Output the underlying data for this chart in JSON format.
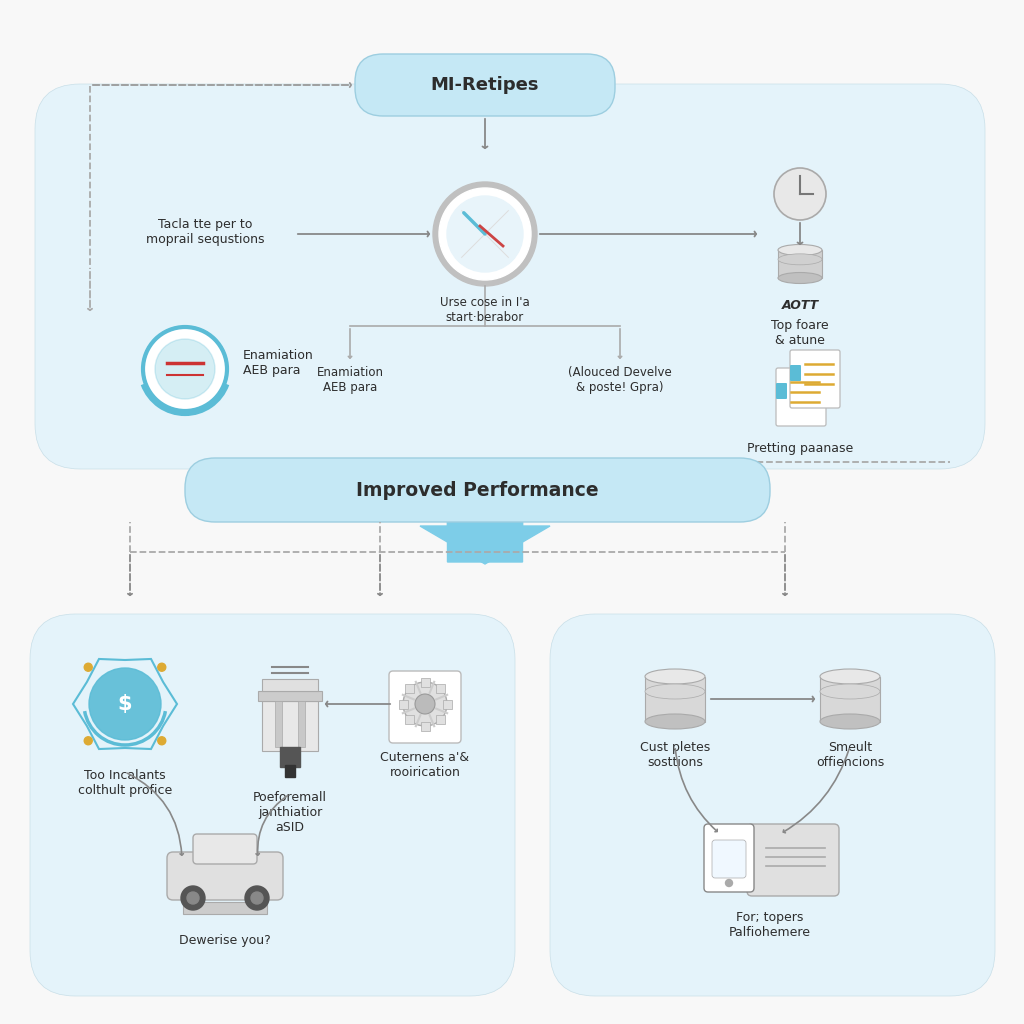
{
  "bg_color": "#f8f8f8",
  "light_blue_panel": "#e4f3fa",
  "accent_blue": "#7dcde8",
  "text_dark": "#2d2d2d",
  "top_box_label": "MI-Retipes",
  "top_box_bg": "#c5e8f5",
  "mid_box_label": "Improved Performance",
  "mid_box_bg": "#c5e8f5",
  "center_icon_label": "Urse cose in I'a\nstart·berabor",
  "left_top_label": "Tacla tte per to\nmoprail sequstions",
  "right_top_label_bold": "AOTT",
  "right_top_label": "Top foare\n& atune",
  "bottom_left_label": "Enamiation\nAEB para",
  "bottom_center_label": "(Alouced Develve\n& poste! Gpra)",
  "bottom_right_label": "Pretting paanase",
  "ll_label1": "Too Incalants\ncolthult profice",
  "ll_label2": "Poeforemall\njanthiatior\naSID",
  "ll_label3": "Cuternens a'&\nrooirication",
  "ll_label4": "Dewerise you?",
  "rl_label1": "Cust pletes\nsosttions",
  "rl_label2": "Smeult\noffiencions",
  "rl_label3": "For; topers\nPalfiohemere"
}
